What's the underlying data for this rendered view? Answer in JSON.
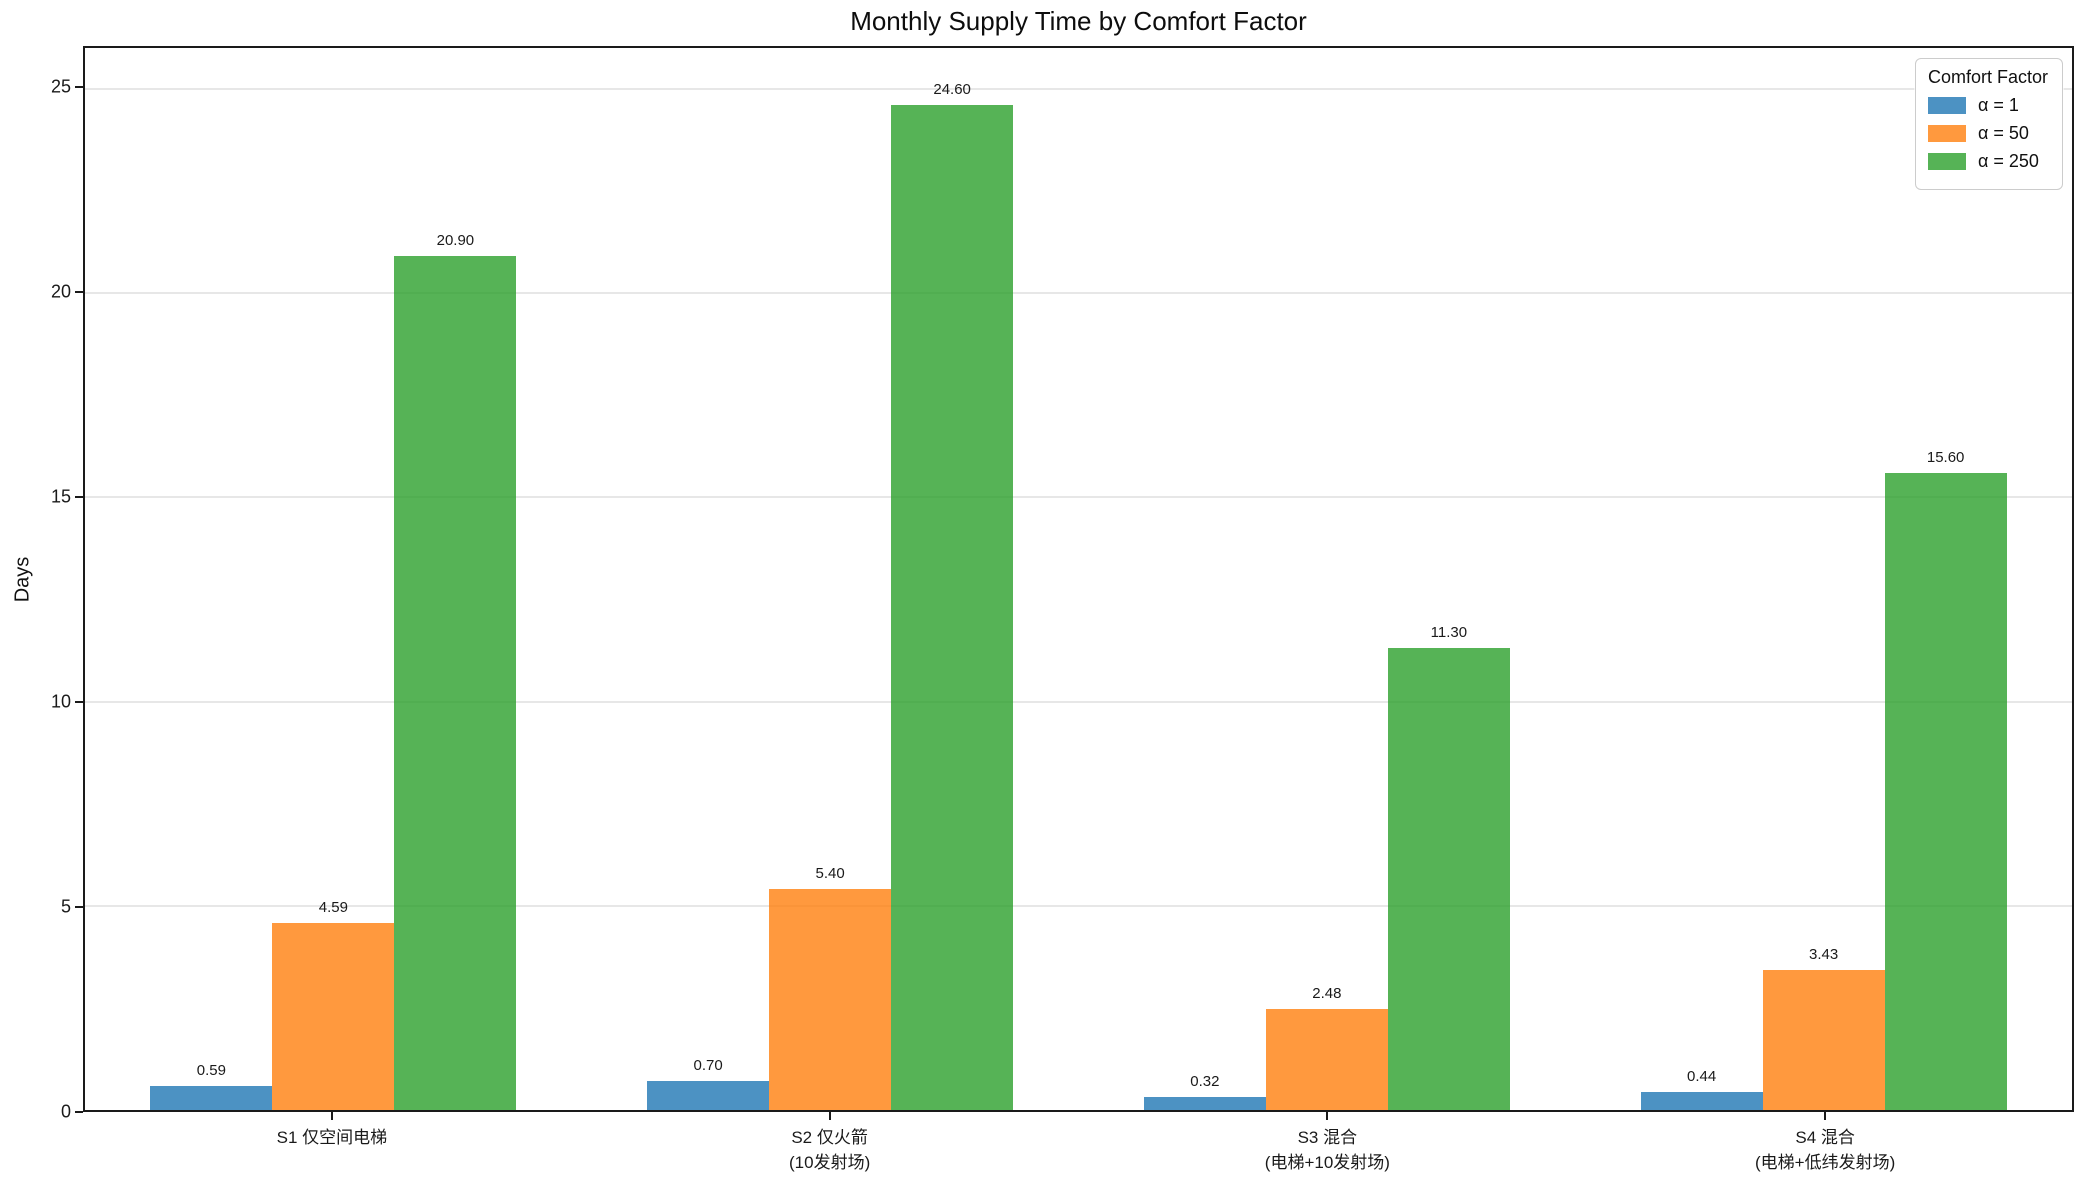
{
  "chart_data": {
    "type": "bar",
    "title": "Monthly Supply Time by Comfort Factor",
    "xlabel": "",
    "ylabel": "Days",
    "ylim": [
      0,
      26
    ],
    "yticks": [
      0,
      5,
      10,
      15,
      20,
      25
    ],
    "grid": "horizontal-light",
    "legend": {
      "title": "Comfort Factor",
      "position": "upper-right"
    },
    "categories": [
      {
        "line1": "S1 仅空间电梯",
        "line2": ""
      },
      {
        "line1": "S2 仅火箭",
        "line2": "(10发射场)"
      },
      {
        "line1": "S3 混合",
        "line2": "(电梯+10发射场)"
      },
      {
        "line1": "S4 混合",
        "line2": "(电梯+低纬发射场)"
      }
    ],
    "series": [
      {
        "name": "α = 1",
        "color": "#1f77b4",
        "opacity": 0.8,
        "values": [
          0.59,
          0.7,
          0.32,
          0.44
        ]
      },
      {
        "name": "α = 50",
        "color": "#ff7f0e",
        "opacity": 0.8,
        "values": [
          4.59,
          5.4,
          2.48,
          3.43
        ]
      },
      {
        "name": "α = 250",
        "color": "#2ca02c",
        "opacity": 0.8,
        "values": [
          20.9,
          24.6,
          11.3,
          15.6
        ]
      }
    ],
    "value_label_decimals": 2,
    "colors": {
      "grid": "#e7e7e7",
      "spine": "#1a1a1a",
      "text": "#111111",
      "legend_border": "#cccccc"
    }
  }
}
